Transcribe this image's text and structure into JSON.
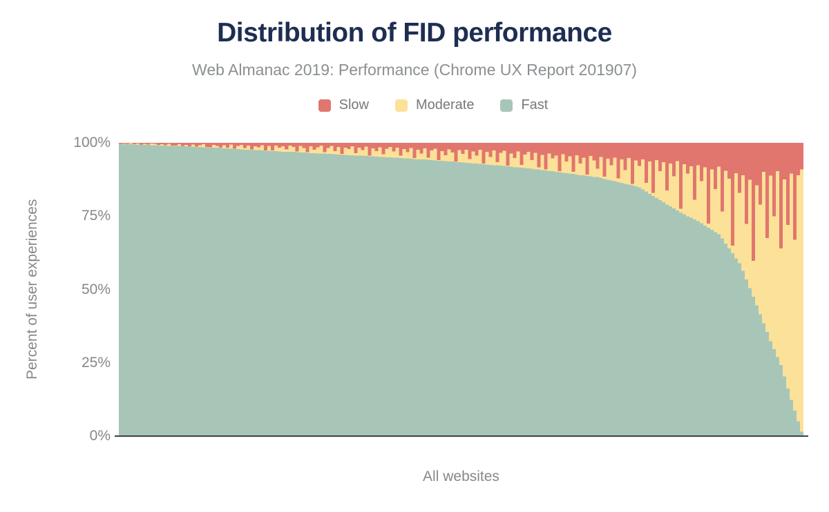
{
  "colors": {
    "slow": "#e1766e",
    "moderate": "#fce198",
    "fast": "#a7c6b7",
    "title_text": "#1e2e52",
    "muted_text": "#85888b",
    "axis_line": "#3c4043",
    "background": "#ffffff"
  },
  "legend_display_order": [
    "Slow",
    "Moderate",
    "Fast"
  ],
  "chart_data": {
    "type": "bar",
    "variant": "stacked-percent-columns",
    "title": "Distribution of FID performance",
    "subtitle": "Web Almanac 2019: Performance (Chrome UX Report 201907)",
    "xlabel": "All websites",
    "ylabel": "Percent of user experiences",
    "ylim": [
      0,
      100
    ],
    "grid": false,
    "legend_position": "top",
    "y_axis": {
      "tick_labels_top_to_bottom": [
        "100%",
        "75%",
        "50%",
        "25%",
        "0%"
      ]
    },
    "x_meaning": "websites ordered best-to-worst by FID; one thin column per site, no x tick labels",
    "stack_order_bottom_to_top": [
      "Fast",
      "Moderate",
      "Slow"
    ],
    "bar_count": 198,
    "series": [
      {
        "name": "Fast",
        "color": "#a7c6b7",
        "values": [
          99.6,
          99.6,
          99.5,
          99.5,
          99.4,
          99.4,
          99.4,
          99.3,
          99.3,
          99.2,
          99.2,
          99.2,
          99.1,
          99.1,
          99.0,
          99.0,
          99.0,
          98.9,
          98.9,
          98.8,
          98.8,
          98.7,
          98.6,
          98.6,
          98.5,
          98.5,
          98.4,
          98.3,
          98.3,
          98.2,
          98.1,
          98.1,
          98.0,
          97.9,
          97.9,
          97.8,
          97.7,
          97.7,
          97.6,
          97.5,
          97.5,
          97.4,
          97.3,
          97.3,
          97.2,
          97.2,
          97.1,
          97.0,
          97.0,
          96.9,
          96.9,
          96.8,
          96.7,
          96.7,
          96.6,
          96.5,
          96.5,
          96.4,
          96.4,
          96.3,
          96.2,
          96.2,
          96.1,
          96.0,
          96.0,
          95.9,
          95.8,
          95.8,
          95.7,
          95.6,
          95.6,
          95.5,
          95.4,
          95.4,
          95.3,
          95.2,
          95.2,
          95.1,
          95.1,
          95.0,
          94.9,
          94.8,
          94.7,
          94.7,
          94.6,
          94.5,
          94.4,
          94.3,
          94.3,
          94.2,
          94.1,
          94.0,
          93.9,
          93.9,
          93.8,
          93.7,
          93.6,
          93.5,
          93.4,
          93.3,
          93.2,
          93.1,
          93.0,
          92.9,
          92.8,
          92.7,
          92.6,
          92.5,
          92.4,
          92.3,
          92.2,
          92.1,
          92.0,
          91.9,
          91.7,
          91.6,
          91.5,
          91.4,
          91.3,
          91.2,
          91.0,
          90.9,
          90.7,
          90.6,
          90.4,
          90.3,
          90.1,
          90.0,
          89.8,
          89.7,
          89.5,
          89.4,
          89.2,
          89.0,
          88.9,
          88.7,
          88.6,
          88.4,
          88.3,
          88.0,
          87.7,
          87.4,
          87.2,
          86.9,
          86.6,
          86.3,
          86.0,
          85.8,
          85.5,
          85.2,
          84.8,
          84.1,
          83.4,
          82.6,
          81.9,
          81.2,
          80.5,
          79.8,
          79.0,
          78.3,
          77.6,
          76.9,
          76.2,
          75.6,
          75.0,
          74.5,
          73.9,
          73.3,
          72.6,
          71.8,
          71.1,
          70.3,
          69.5,
          68.8,
          67.4,
          65.7,
          64.0,
          62.3,
          60.6,
          59.0,
          56.4,
          53.4,
          50.5,
          47.5,
          44.6,
          41.5,
          38.5,
          35.5,
          32.4,
          29.7,
          26.9,
          24.2,
          20.3,
          16.2,
          12.4,
          8.7,
          5.1,
          1.5
        ]
      },
      {
        "name": "Moderate",
        "color": "#fce198",
        "values_note": "derived per bar: 100 minus Fast minus Slow (columns stack to 100%)"
      },
      {
        "name": "Slow",
        "color": "#e1766e",
        "values": [
          0.3,
          0.2,
          0.4,
          0.1,
          0.5,
          0.2,
          0.6,
          0.3,
          0.6,
          0.2,
          0.4,
          0.7,
          0.5,
          0.8,
          0.4,
          0.9,
          0.9,
          0.5,
          1.0,
          0.7,
          1.2,
          0.6,
          1.3,
          0.8,
          0.5,
          1.4,
          1.5,
          0.7,
          1.0,
          1.7,
          0.8,
          1.6,
          0.6,
          2.0,
          1.1,
          0.7,
          1.8,
          0.9,
          2.2,
          1.2,
          1.5,
          0.8,
          2.6,
          1.1,
          2.6,
          0.9,
          1.7,
          1.2,
          2.2,
          0.9,
          1.4,
          2.9,
          1.0,
          1.8,
          3.2,
          1.2,
          2.4,
          1.5,
          0.9,
          3.2,
          1.8,
          1.1,
          2.8,
          1.4,
          3.8,
          1.6,
          2.1,
          1.2,
          3.5,
          1.7,
          2.5,
          1.3,
          4.4,
          1.9,
          2.8,
          1.5,
          3.9,
          2.0,
          1.4,
          2.9,
          1.6,
          4.4,
          2.1,
          3.2,
          1.8,
          5.2,
          2.4,
          3.6,
          1.9,
          5.0,
          2.6,
          2.0,
          5.9,
          2.8,
          4.2,
          2.2,
          3.3,
          6.3,
          2.5,
          3.8,
          2.3,
          5.5,
          2.9,
          4.4,
          2.4,
          7.1,
          3.1,
          4.8,
          2.6,
          6.6,
          3.4,
          2.7,
          7.8,
          3.6,
          5.2,
          2.9,
          7.5,
          4.0,
          3.0,
          5.9,
          3.4,
          8.3,
          4.1,
          9.0,
          3.7,
          5.3,
          4.4,
          9.6,
          3.9,
          6.4,
          4.6,
          9.9,
          4.2,
          7.1,
          5.0,
          10.8,
          4.5,
          6.0,
          8.8,
          4.8,
          11.5,
          5.4,
          7.6,
          5.0,
          12.1,
          5.7,
          9.3,
          5.2,
          14.0,
          6.0,
          7.9,
          5.6,
          13.7,
          6.3,
          17.0,
          5.9,
          9.7,
          6.6,
          16.2,
          7.0,
          11.4,
          6.2,
          22.5,
          7.3,
          10.5,
          8.0,
          19.4,
          7.6,
          13.0,
          8.4,
          27.5,
          9.0,
          15.8,
          8.1,
          23.4,
          9.5,
          12.2,
          35.0,
          10.3,
          17.0,
          11.0,
          27.7,
          12.6,
          40.2,
          14.5,
          21.0,
          9.9,
          32.5,
          11.2,
          25.0,
          9.6,
          36.0,
          12.5,
          28.0,
          10.5,
          33.0,
          11.0,
          9.0
        ]
      }
    ]
  }
}
